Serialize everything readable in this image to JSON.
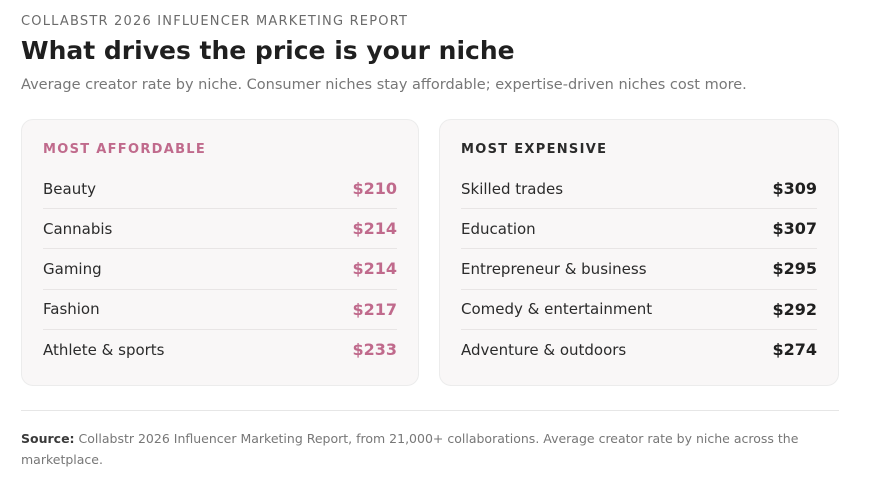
{
  "header": {
    "eyebrow": "COLLABSTR 2026 INFLUENCER MARKETING REPORT",
    "title": "What drives the price is your niche",
    "subtitle": "Average creator rate by niche. Consumer niches stay affordable; expertise-driven niches cost more."
  },
  "affordable": {
    "heading": "MOST AFFORDABLE",
    "accent_color": "#c06a8c",
    "items": [
      {
        "label": "Beauty",
        "value": "$210"
      },
      {
        "label": "Cannabis",
        "value": "$214"
      },
      {
        "label": "Gaming",
        "value": "$214"
      },
      {
        "label": "Fashion",
        "value": "$217"
      },
      {
        "label": "Athlete & sports",
        "value": "$233"
      }
    ]
  },
  "expensive": {
    "heading": "MOST EXPENSIVE",
    "accent_color": "#1f1f1f",
    "items": [
      {
        "label": "Skilled trades",
        "value": "$309"
      },
      {
        "label": "Education",
        "value": "$307"
      },
      {
        "label": "Entrepreneur & business",
        "value": "$295"
      },
      {
        "label": "Comedy & entertainment",
        "value": "$292"
      },
      {
        "label": "Adventure & outdoors",
        "value": "$274"
      }
    ]
  },
  "footer": {
    "source_label": "Source:",
    "source_text": "Collabstr 2026 Influencer Marketing Report, from 21,000+ collaborations. Average creator rate by niche across the marketplace."
  }
}
